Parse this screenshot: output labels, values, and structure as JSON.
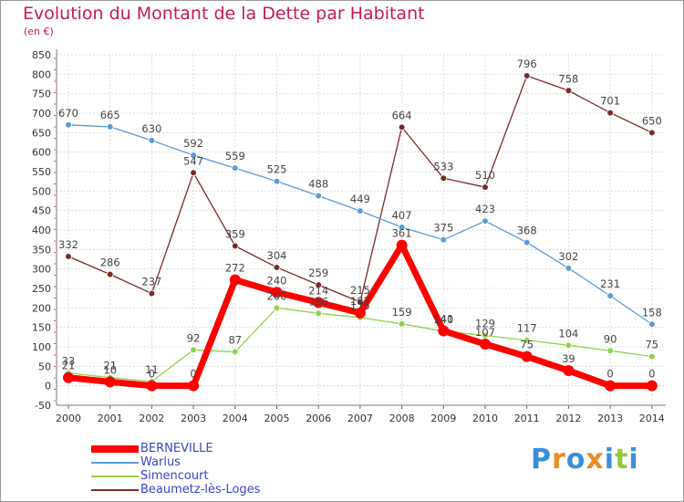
{
  "chart_data": {
    "type": "line",
    "title": "Evolution du Montant de la Dette par Habitant",
    "subtitle": "(en €)",
    "x": [
      "2000",
      "2001",
      "2002",
      "2003",
      "2004",
      "2005",
      "2006",
      "2007",
      "2008",
      "2009",
      "2010",
      "2011",
      "2012",
      "2013",
      "2014"
    ],
    "ylim": [
      -50,
      850
    ],
    "yticks": [
      -50,
      0,
      50,
      100,
      150,
      200,
      250,
      300,
      350,
      400,
      450,
      500,
      550,
      600,
      650,
      700,
      750,
      800,
      850
    ],
    "grid": true,
    "legend_position": "bottom-left",
    "series": [
      {
        "name": "BERNEVILLE",
        "color": "#ff0000",
        "values": [
          21,
          10,
          0,
          0,
          272,
          240,
          214,
          187,
          361,
          141,
          107,
          75,
          39,
          0,
          0
        ]
      },
      {
        "name": "Warlus",
        "color": "#5b9bd5",
        "values": [
          670,
          665,
          630,
          592,
          559,
          525,
          488,
          449,
          407,
          375,
          423,
          368,
          302,
          231,
          158
        ]
      },
      {
        "name": "Simencourt",
        "color": "#92d050",
        "values": [
          33,
          21,
          11,
          92,
          87,
          200,
          186,
          175,
          159,
          140,
          129,
          117,
          104,
          90,
          75
        ]
      },
      {
        "name": "Beaumetz-lès-Loges",
        "color": "#7a2a2a",
        "values": [
          332,
          286,
          237,
          547,
          359,
          304,
          259,
          215,
          664,
          533,
          510,
          796,
          758,
          701,
          650
        ]
      }
    ]
  },
  "brand": {
    "letters": [
      "P",
      "r",
      "o",
      "x",
      "i",
      "t",
      "i"
    ],
    "colors": [
      "#3a8fd8",
      "#f08a24",
      "#3a8fd8",
      "#f08a24",
      "#3a8fd8",
      "#92c83e",
      "#3a8fd8"
    ]
  }
}
